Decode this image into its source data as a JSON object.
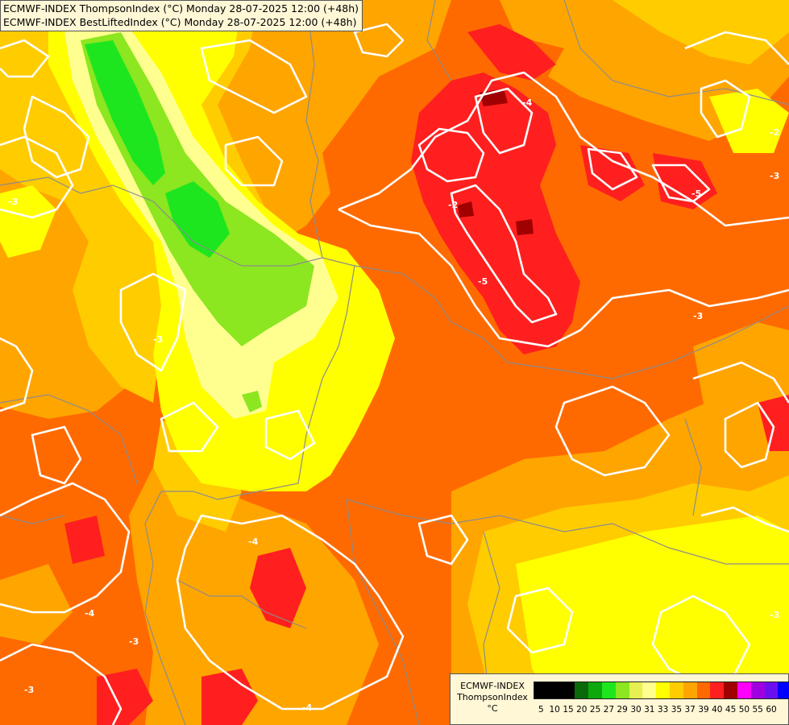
{
  "title": {
    "line1": "ECMWF-INDEX ThompsonIndex (°C) Monday 28-07-2025 12:00 (+48h)",
    "line2": "ECMWF-INDEX BestLiftedIndex (°C) Monday 28-07-2025 12:00 (+48h)"
  },
  "legend": {
    "line1": "ECMWF-INDEX",
    "line2": "ThompsonIndex",
    "unit": "°C",
    "swatches": [
      {
        "color": "#000000",
        "label": "5"
      },
      {
        "color": "#000000",
        "label": "10"
      },
      {
        "color": "#000000",
        "label": "15"
      },
      {
        "color": "#0a6a0a",
        "label": "20"
      },
      {
        "color": "#0ca80c",
        "label": "25"
      },
      {
        "color": "#1ee61e",
        "label": "27"
      },
      {
        "color": "#8ce620",
        "label": "29"
      },
      {
        "color": "#e6f050",
        "label": "30"
      },
      {
        "color": "#ffff90",
        "label": "31"
      },
      {
        "color": "#ffff00",
        "label": "33"
      },
      {
        "color": "#ffcc00",
        "label": "35"
      },
      {
        "color": "#ffa500",
        "label": "37"
      },
      {
        "color": "#ff6a00",
        "label": "39"
      },
      {
        "color": "#ff1f1f",
        "label": "40"
      },
      {
        "color": "#a00000",
        "label": "45"
      },
      {
        "color": "#ff00ff",
        "label": "50"
      },
      {
        "color": "#a000e0",
        "label": "55"
      },
      {
        "color": "#6a10f0",
        "label": "60"
      },
      {
        "color": "#0000ff",
        "label": ""
      }
    ]
  },
  "contour_labels": [
    "-4",
    "-2",
    "-5",
    "-3",
    "-2",
    "-3",
    "-3",
    "-5",
    "-3",
    "-3",
    "-4",
    "-3",
    "-4",
    "-3",
    "-4"
  ],
  "colors": {
    "orange_dark": "#ff6a00",
    "orange": "#ffa500",
    "amber": "#ffcc00",
    "yellow": "#ffff00",
    "light_yellow": "#ffff90",
    "lime": "#8ce620",
    "green": "#1ee61e",
    "red": "#ff1f1f",
    "dark_red": "#a00000",
    "contour": "#ffffff",
    "border": "#8c8c8c"
  }
}
